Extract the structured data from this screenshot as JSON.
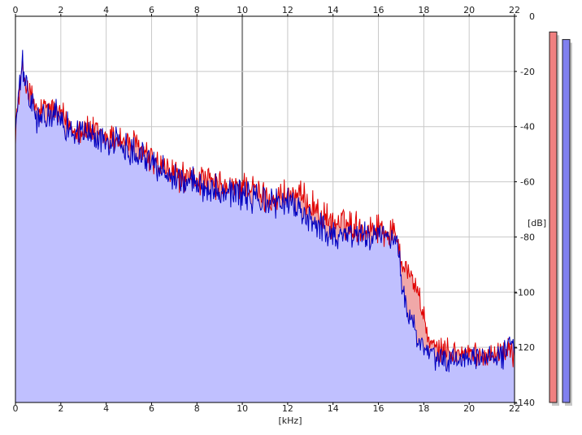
{
  "chart_data": {
    "type": "area",
    "xlabel": "[kHz]",
    "ylabel": "[dB]",
    "xlim": [
      0,
      22
    ],
    "ylim": [
      -140,
      0
    ],
    "x_ticks": [
      "0",
      "2",
      "4",
      "6",
      "8",
      "10",
      "12",
      "14",
      "16",
      "18",
      "20",
      "22"
    ],
    "y_ticks": [
      "0",
      "-20",
      "-40",
      "-60",
      "-80",
      "-100",
      "-120",
      "-140"
    ],
    "grid": true,
    "series": [
      {
        "channel": "red",
        "color": "#e00000",
        "fill": "#f0a8a8",
        "x": [
          0.0,
          0.3,
          0.6,
          1.0,
          1.5,
          2.0,
          2.5,
          3.0,
          3.5,
          4.0,
          4.5,
          5.0,
          5.5,
          6.0,
          6.5,
          7.0,
          7.5,
          8.0,
          8.5,
          9.0,
          9.5,
          10.0,
          10.5,
          11.0,
          11.5,
          12.0,
          12.5,
          13.0,
          13.5,
          14.0,
          14.5,
          15.0,
          15.5,
          16.0,
          16.5,
          16.8,
          17.0,
          17.3,
          17.6,
          17.8,
          18.0,
          18.3,
          18.6,
          19.0,
          19.5,
          20.0,
          20.5,
          21.0,
          21.5,
          21.8,
          22.0
        ],
        "y": [
          -40,
          -19,
          -28,
          -35,
          -33,
          -36,
          -40,
          -41,
          -42,
          -44,
          -44,
          -46,
          -48,
          -52,
          -55,
          -57,
          -59,
          -59,
          -60,
          -62,
          -63,
          -61,
          -63,
          -66,
          -66,
          -64,
          -66,
          -67,
          -73,
          -75,
          -75,
          -76,
          -77,
          -76,
          -79,
          -78,
          -88,
          -92,
          -97,
          -101,
          -110,
          -119,
          -121,
          -121,
          -122,
          -122,
          -123,
          -122,
          -122,
          -119,
          -124
        ]
      },
      {
        "channel": "blue",
        "color": "#0000c0",
        "fill": "#c0c0ff",
        "x": [
          0.0,
          0.3,
          0.6,
          1.0,
          1.5,
          2.0,
          2.5,
          3.0,
          3.5,
          4.0,
          4.5,
          5.0,
          5.5,
          6.0,
          6.5,
          7.0,
          7.5,
          8.0,
          8.5,
          9.0,
          9.5,
          10.0,
          10.5,
          11.0,
          11.5,
          12.0,
          12.5,
          13.0,
          13.5,
          14.0,
          14.5,
          15.0,
          15.5,
          16.0,
          16.5,
          16.8,
          17.0,
          17.3,
          17.6,
          17.8,
          18.0,
          18.3,
          18.6,
          19.0,
          19.5,
          20.0,
          20.5,
          21.0,
          21.5,
          21.8,
          22.0
        ],
        "y": [
          -40,
          -18,
          -30,
          -38,
          -36,
          -37,
          -42,
          -42,
          -44,
          -45,
          -46,
          -48,
          -49,
          -53,
          -56,
          -58,
          -60,
          -61,
          -62,
          -63,
          -63,
          -65,
          -66,
          -67,
          -68,
          -67,
          -71,
          -73,
          -77,
          -79,
          -79,
          -79,
          -80,
          -79,
          -82,
          -80,
          -95,
          -108,
          -113,
          -118,
          -122,
          -122,
          -125,
          -125,
          -124,
          -125,
          -124,
          -123,
          -123,
          -116,
          -124
        ]
      }
    ],
    "level_meters": [
      {
        "channel": "red",
        "color": "#f08080",
        "level": 0.98
      },
      {
        "channel": "blue",
        "color": "#8080f0",
        "level": 0.96
      }
    ]
  }
}
